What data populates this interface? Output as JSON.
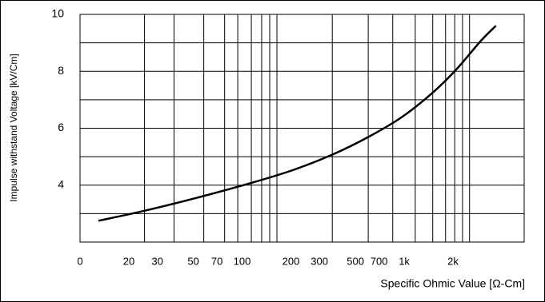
{
  "chart_data": {
    "type": "line",
    "x_label": "Specific Ohmic Value [Ω-Cm]",
    "y_label": "Impulse withstand Voltage [kV/Cm]",
    "x_scale": "log",
    "xlim": [
      10,
      5500
    ],
    "xorigin_label": "0",
    "xticks": [
      20,
      30,
      50,
      70,
      100,
      200,
      300,
      500,
      700,
      {
        "value": 1000,
        "label": "1k"
      },
      {
        "value": 2000,
        "label": "2k"
      }
    ],
    "xgrid": [
      25,
      38,
      58,
      78,
      94,
      114,
      132,
      148,
      164,
      360,
      600,
      850,
      1170,
      1500,
      1800,
      2050,
      2290,
      2530
    ],
    "ylim": [
      2,
      10
    ],
    "yticks": [
      4,
      6,
      8,
      10
    ],
    "ygrid": [
      3,
      5,
      7,
      9
    ],
    "grid": true,
    "series": [
      {
        "color": "#000000",
        "x": [
          13,
          25,
          52,
          114,
          206,
          363,
          613,
          966,
          1500,
          2110,
          2960,
          3680
        ],
        "values": [
          2.75,
          3.1,
          3.55,
          4.08,
          4.53,
          5.08,
          5.72,
          6.39,
          7.25,
          8.08,
          9.06,
          9.6
        ]
      }
    ]
  }
}
